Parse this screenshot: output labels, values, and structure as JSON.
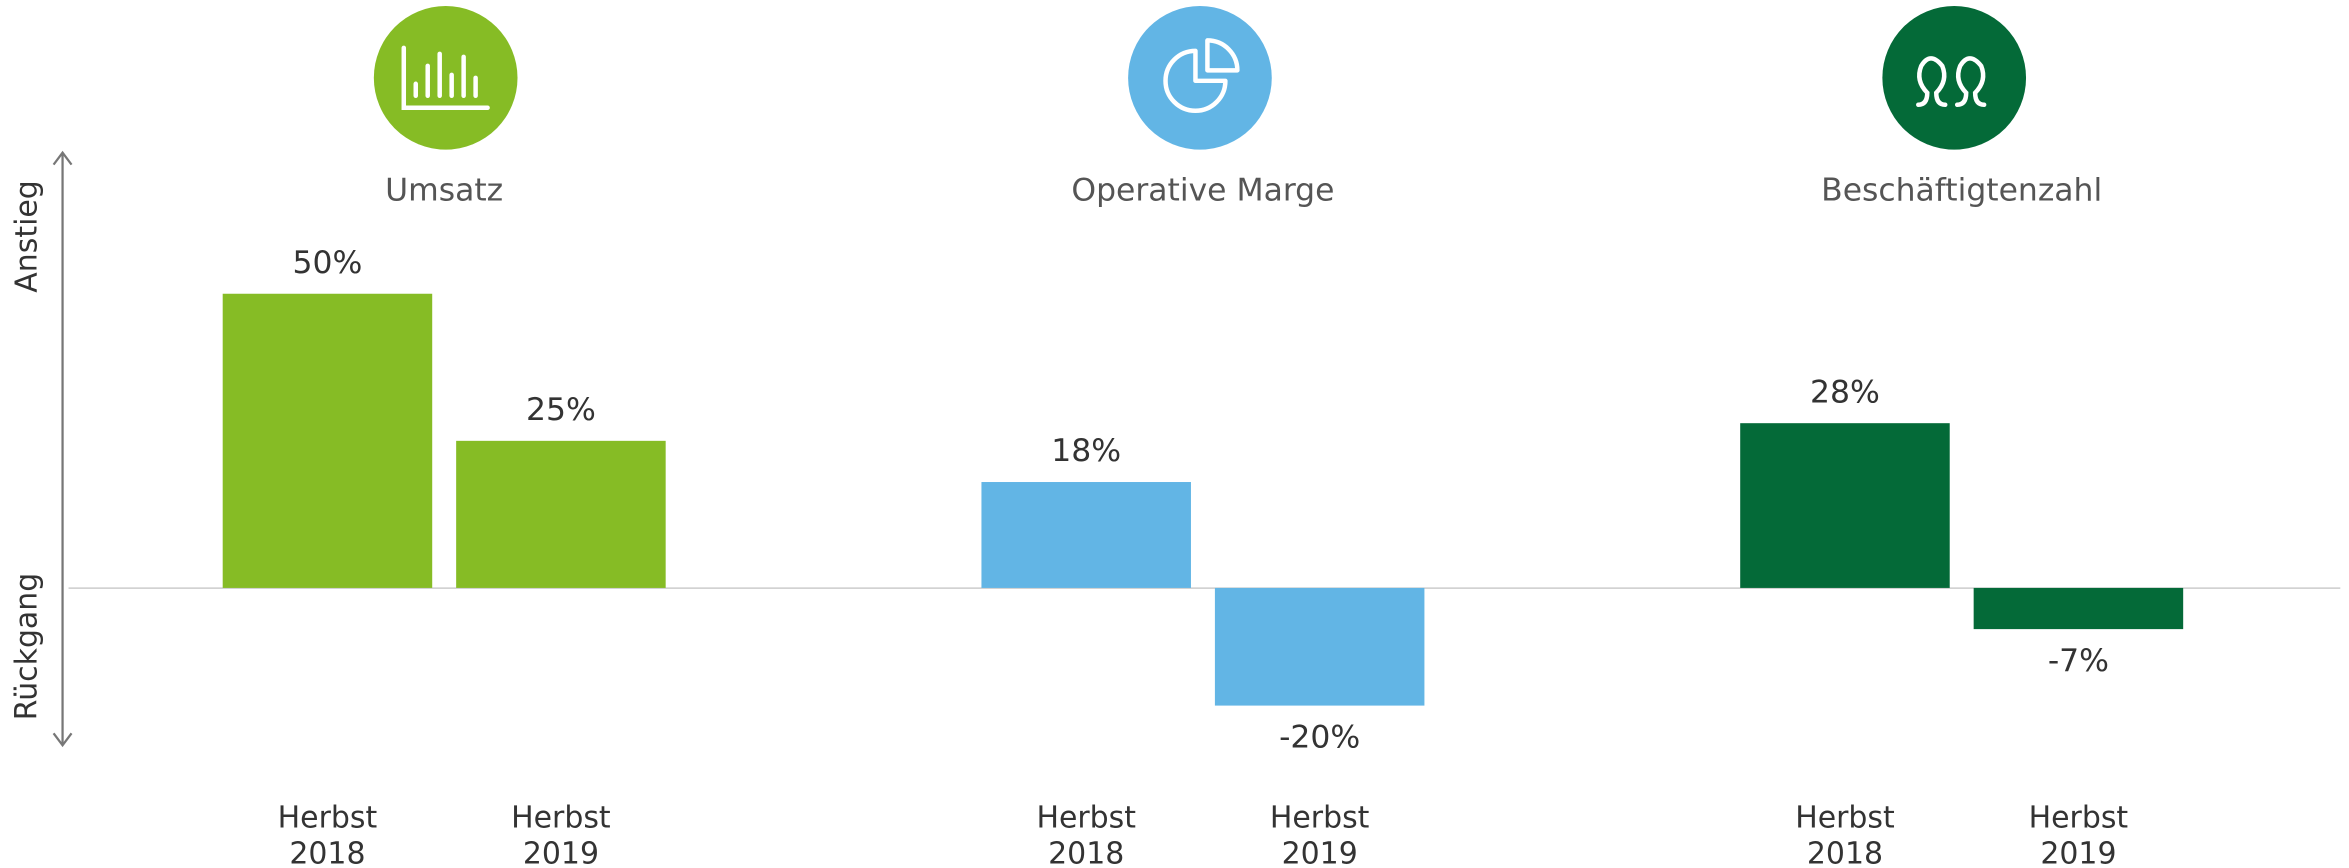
{
  "chart_data": {
    "type": "bar",
    "axis_label_top": "Anstieg",
    "axis_label_bottom": "Rückgang",
    "categories": [
      "Herbst 2018",
      "Herbst 2019"
    ],
    "ylim": [
      -27,
      75
    ],
    "series": [
      {
        "name": "Umsatz",
        "color": "#86bc25",
        "values": [
          50,
          25
        ],
        "value_labels": [
          "50%",
          "25%"
        ]
      },
      {
        "name": "Operative Marge",
        "color": "#62b5e5",
        "values": [
          18,
          -20
        ],
        "value_labels": [
          "18%",
          "-20%"
        ]
      },
      {
        "name": "Beschäftigtenzahl",
        "color": "#046a38",
        "values": [
          28,
          -7
        ],
        "value_labels": [
          "28%",
          "-7%"
        ]
      }
    ]
  }
}
